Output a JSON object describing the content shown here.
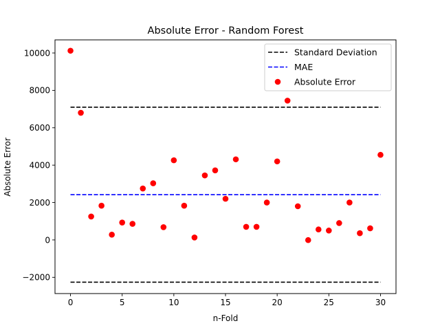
{
  "chart_data": {
    "type": "scatter",
    "title": "Absolute Error - Random Forest",
    "xlabel": "n-Fold",
    "ylabel": "Absolute Error",
    "xlim": [
      -1.5,
      31.5
    ],
    "ylim": [
      -2870,
      10700
    ],
    "xticks": [
      0,
      5,
      10,
      15,
      20,
      25,
      30
    ],
    "yticks": [
      -2000,
      0,
      2000,
      4000,
      6000,
      8000,
      10000
    ],
    "grid": false,
    "legend_position": "upper right",
    "series": [
      {
        "name": "Absolute Error",
        "kind": "scatter",
        "color": "#ff0000",
        "x": [
          0,
          1,
          2,
          3,
          4,
          5,
          6,
          7,
          8,
          9,
          10,
          11,
          12,
          13,
          14,
          15,
          16,
          17,
          18,
          19,
          20,
          21,
          22,
          23,
          24,
          25,
          26,
          27,
          28,
          29,
          30
        ],
        "y": [
          10120,
          6800,
          1250,
          1830,
          280,
          930,
          860,
          2750,
          3030,
          680,
          4260,
          1830,
          130,
          3450,
          3720,
          2200,
          4310,
          700,
          700,
          2000,
          4200,
          7450,
          1800,
          -10,
          560,
          500,
          900,
          2000,
          360,
          620,
          4550
        ]
      },
      {
        "name": "Standard Deviation",
        "kind": "hline",
        "color": "#000000",
        "dash": true,
        "x": [
          0,
          30
        ],
        "y_values": [
          7100,
          -2260
        ]
      },
      {
        "name": "MAE",
        "kind": "hline",
        "color": "#0000ff",
        "dash": true,
        "x": [
          0,
          30
        ],
        "y_values": [
          2420
        ]
      }
    ],
    "legend": [
      "Standard Deviation",
      "MAE",
      "Absolute Error"
    ]
  }
}
